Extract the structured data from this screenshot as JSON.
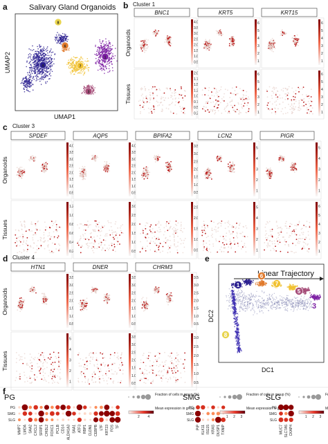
{
  "panels": {
    "a": {
      "label": "a",
      "title": "Salivary Gland Organoids",
      "xlabel": "UMAP1",
      "ylabel": "UMAP2",
      "clusters": [
        {
          "id": "1"
        },
        {
          "id": "3"
        },
        {
          "id": "4"
        },
        {
          "id": "5"
        },
        {
          "id": "6"
        },
        {
          "id": "7"
        },
        {
          "id": "8"
        }
      ]
    },
    "b": {
      "label": "b",
      "cluster": "Cluster 1",
      "genes": [
        "BNC1",
        "KRT5",
        "KRT15"
      ],
      "rows": [
        "Organoids",
        "Tissues"
      ],
      "scales": [
        [
          "0.5",
          "1.0",
          "1.5",
          "2.0",
          "2.5",
          "3.0",
          "3.5",
          "4.0"
        ],
        [
          "1",
          "2",
          "3",
          "4",
          "5",
          "6"
        ],
        [
          "1",
          "2",
          "3",
          "4",
          "5",
          "6"
        ],
        [
          "0.25",
          "0.50",
          "0.75",
          "1.00",
          "1.25",
          "1.50",
          "1.75",
          "2.00"
        ],
        [
          "1",
          "2",
          "3",
          "4",
          "5",
          "6"
        ],
        [
          "1",
          "2",
          "3",
          "4",
          "5",
          "6"
        ]
      ]
    },
    "c": {
      "label": "c",
      "cluster": "Cluster 3",
      "genes": [
        "SPDEF",
        "AQP5",
        "BPIFA2",
        "LCN2",
        "PIGR"
      ],
      "rows": [
        "Organoids",
        "Tissues"
      ],
      "scales": [
        [
          "0.5",
          "1.0",
          "1.5",
          "2.0",
          "2.5",
          "3.0",
          "3.5",
          "4.0"
        ],
        [
          "0.5",
          "1.0",
          "1.5",
          "2.0",
          "2.5",
          "3.0",
          "3.5",
          "4.0"
        ],
        [
          "0.5",
          "1.0",
          "1.5",
          "2.0",
          "2.5",
          "3.0",
          "3.5"
        ],
        [
          "1",
          "2",
          "3",
          "4",
          "5"
        ],
        [
          "1",
          "2",
          "3",
          "4",
          "5"
        ],
        [
          "0.2",
          "0.4",
          "0.6",
          "0.8",
          "1.0",
          "1.2"
        ],
        [
          "0.5",
          "1.0",
          "1.5",
          "2.0",
          "2.5",
          "3.0"
        ],
        [
          "0.5",
          "1.0",
          "1.5",
          "2.0",
          "2.5"
        ],
        [
          "1",
          "2",
          "3",
          "4",
          "5"
        ],
        [
          "1",
          "2",
          "3",
          "4",
          "5",
          "6"
        ]
      ]
    },
    "d": {
      "label": "d",
      "cluster": "Cluster 4",
      "genes": [
        "HTN1",
        "DNER",
        "CHRM3"
      ],
      "rows": [
        "Organoids",
        "Tissues"
      ],
      "scales": [
        [
          "0.5",
          "1.0",
          "1.5",
          "2.0",
          "2.5",
          "3.0",
          "3.5"
        ],
        [
          "0.5",
          "1.0",
          "1.5",
          "2.0",
          "2.5",
          "3.0",
          "3.5"
        ],
        [
          "0.5",
          "1.0",
          "1.5",
          "2.0",
          "2.5",
          "3.0",
          "3.5"
        ],
        [
          "1",
          "2",
          "3",
          "4",
          "5"
        ],
        [
          "0.5",
          "1.0",
          "1.5",
          "2.0",
          "2.5",
          "3.0",
          "3.5"
        ],
        [
          "0.5",
          "1.0",
          "1.5",
          "2.0",
          "2.5",
          "3.0"
        ]
      ]
    },
    "e": {
      "label": "e",
      "xlabel": "DC1",
      "ylabel": "DC2",
      "trajectory": "Linear Trajectory",
      "clusters": [
        {
          "id": "1"
        },
        {
          "id": "6"
        },
        {
          "id": "7"
        },
        {
          "id": "5"
        },
        {
          "id": "3"
        },
        {
          "id": "8"
        }
      ]
    },
    "f": {
      "label": "f",
      "groups": [
        "PG",
        "SMG",
        "SLG"
      ],
      "rows": [
        "PG",
        "SMG",
        "SLG"
      ],
      "legend_fraction_title": "Fraction of cells in group (%)",
      "legend_mean_title": "Mean expression in group",
      "fraction_ticks": [
        "20",
        "40",
        "60",
        "80",
        "100"
      ],
      "pg_genes": [
        "MMP7",
        "LMOA",
        "SAA2",
        "CXCL2",
        "SFRP1",
        "CHI3L2",
        "FOXC1",
        "PCLB",
        "CD14",
        "ALDH1A3",
        "SAA1",
        "ATF3",
        "RBP1",
        "CLDN1",
        "CEBPB",
        "LTF",
        "KRT23",
        "FOS",
        "TF"
      ],
      "pg_scale": [
        "2",
        "4"
      ],
      "smg_genes": [
        "PIP",
        "KLK11",
        "ISG15",
        "KRAS",
        "DUSP1",
        "TXNIP"
      ],
      "smg_scale": [
        "1",
        "2",
        "3"
      ],
      "slg_genes": [
        "MUC7",
        "SLC7A5",
        "CKAP4"
      ],
      "slg_scale": [
        "1",
        "2",
        "3"
      ]
    }
  },
  "colors": {
    "c1": "#6a0dad",
    "c3": "#7c1fa3",
    "c4": "#2a1f8f",
    "c5": "#a64d79",
    "c6": "#e07a2c",
    "c7": "#f1c232",
    "c8": "#e8d44d",
    "heat": "#b30000"
  },
  "chart_data": [
    {
      "type": "scatter",
      "panel": "a",
      "title": "Salivary Gland Organoids",
      "xlabel": "UMAP1",
      "ylabel": "UMAP2",
      "series": []
    },
    {
      "type": "scatter",
      "panel": "e",
      "title": "",
      "xlabel": "DC1",
      "ylabel": "DC2",
      "series": []
    }
  ]
}
